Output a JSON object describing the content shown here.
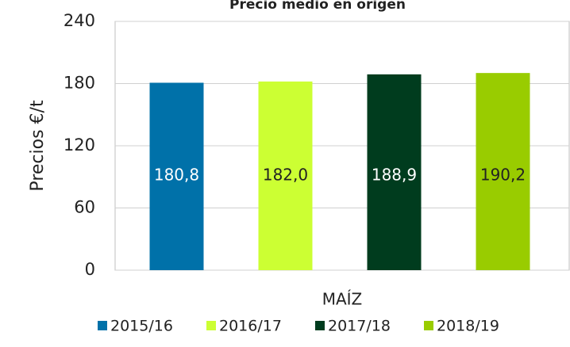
{
  "chart_data": {
    "type": "bar",
    "title": "Precio medio en origen",
    "ylabel": "Precios €/t",
    "categories": [
      "MAÍZ"
    ],
    "series": [
      {
        "name": "2015/16",
        "color": "#0071a9",
        "values": [
          180.8
        ],
        "value_labels": [
          "180,8"
        ]
      },
      {
        "name": "2016/17",
        "color": "#ccff33",
        "values": [
          182.0
        ],
        "value_labels": [
          "182,0"
        ]
      },
      {
        "name": "2017/18",
        "color": "#003c1e",
        "values": [
          188.9
        ],
        "value_labels": [
          "188,9"
        ]
      },
      {
        "name": "2018/19",
        "color": "#99cc00",
        "values": [
          190.2
        ],
        "value_labels": [
          "190,2"
        ]
      }
    ],
    "ylim": [
      0,
      240
    ],
    "yticks": [
      0,
      60,
      120,
      180,
      240
    ],
    "grid": true,
    "legend": "bottom"
  }
}
